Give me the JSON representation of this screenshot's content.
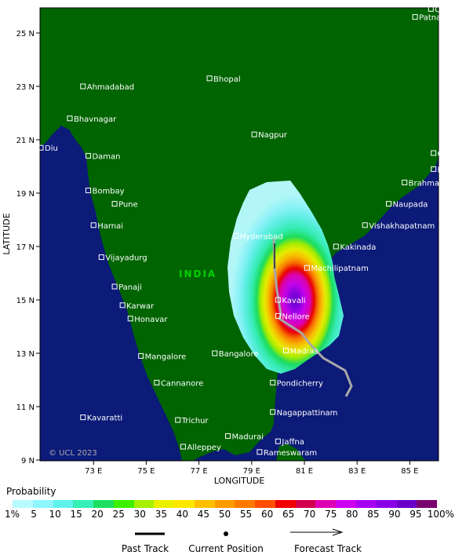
{
  "map": {
    "country_label": "INDIA",
    "copyright": "© UCL 2023",
    "colors": {
      "sea": "#0c1a78",
      "land": "#006400",
      "track": "#a8a8a8"
    },
    "latitude_ticks": [
      "25 N",
      "23 N",
      "21 N",
      "19 N",
      "17 N",
      "15 N",
      "13 N",
      "11 N",
      "9 N"
    ],
    "longitude_ticks": [
      "73 E",
      "75 E",
      "77 E",
      "79 E",
      "81 E",
      "83 E",
      "85 E"
    ],
    "latitude_title": "LATITUDE",
    "longitude_title": "LONGITUDE",
    "cities": [
      {
        "name": "Chapdpur",
        "lon": 85.8,
        "lat": 25.9
      },
      {
        "name": "Patna",
        "lon": 85.2,
        "lat": 25.6
      },
      {
        "name": "Ahmadabad",
        "lon": 72.6,
        "lat": 23.0
      },
      {
        "name": "Bhopal",
        "lon": 77.4,
        "lat": 23.3
      },
      {
        "name": "Bhavnagar",
        "lon": 72.1,
        "lat": 21.8
      },
      {
        "name": "Nagpur",
        "lon": 79.1,
        "lat": 21.2
      },
      {
        "name": "Diu",
        "lon": 71.0,
        "lat": 20.7
      },
      {
        "name": "Daman",
        "lon": 72.8,
        "lat": 20.4
      },
      {
        "name": "Cuttack",
        "lon": 85.9,
        "lat": 20.5
      },
      {
        "name": "Puri",
        "lon": 85.9,
        "lat": 19.9
      },
      {
        "name": "Bombay",
        "lon": 72.8,
        "lat": 19.1
      },
      {
        "name": "Brahmapur",
        "lon": 84.8,
        "lat": 19.4
      },
      {
        "name": "Pune",
        "lon": 73.8,
        "lat": 18.6
      },
      {
        "name": "Naupada",
        "lon": 84.2,
        "lat": 18.6
      },
      {
        "name": "Harnai",
        "lon": 73.0,
        "lat": 17.8
      },
      {
        "name": "Hyderabad",
        "lon": 78.4,
        "lat": 17.4
      },
      {
        "name": "Vishakhapatnam",
        "lon": 83.3,
        "lat": 17.8
      },
      {
        "name": "Vijayadurg",
        "lon": 73.3,
        "lat": 16.6
      },
      {
        "name": "Kakinada",
        "lon": 82.2,
        "lat": 17.0
      },
      {
        "name": "Machilipatnam",
        "lon": 81.1,
        "lat": 16.2
      },
      {
        "name": "Panaji",
        "lon": 73.8,
        "lat": 15.5
      },
      {
        "name": "Karwar",
        "lon": 74.1,
        "lat": 14.8
      },
      {
        "name": "Kavali",
        "lon": 80.0,
        "lat": 15.0
      },
      {
        "name": "Honavar",
        "lon": 74.4,
        "lat": 14.3
      },
      {
        "name": "Nellore",
        "lon": 80.0,
        "lat": 14.4
      },
      {
        "name": "Madras",
        "lon": 80.3,
        "lat": 13.1
      },
      {
        "name": "Mangalore",
        "lon": 74.8,
        "lat": 12.9
      },
      {
        "name": "Bangalore",
        "lon": 77.6,
        "lat": 13.0
      },
      {
        "name": "Cannanore",
        "lon": 75.4,
        "lat": 11.9
      },
      {
        "name": "Pondicherry",
        "lon": 79.8,
        "lat": 11.9
      },
      {
        "name": "Kavaratti",
        "lon": 72.6,
        "lat": 10.6
      },
      {
        "name": "Trichur",
        "lon": 76.2,
        "lat": 10.5
      },
      {
        "name": "Nagappattinam",
        "lon": 79.8,
        "lat": 10.8
      },
      {
        "name": "Madurai",
        "lon": 78.1,
        "lat": 9.9
      },
      {
        "name": "Alleppey",
        "lon": 76.4,
        "lat": 9.5
      },
      {
        "name": "Jaffna",
        "lon": 80.0,
        "lat": 9.7
      },
      {
        "name": "Rameswaram",
        "lon": 79.3,
        "lat": 9.3
      }
    ]
  },
  "legend": {
    "title": "Probability",
    "colors": [
      "#b7fbff",
      "#8ef6ff",
      "#5ff2e8",
      "#36f0b8",
      "#1de060",
      "#3cf000",
      "#a6f000",
      "#ecf000",
      "#ffe800",
      "#ffbf00",
      "#ff9a00",
      "#ff7800",
      "#ff4e00",
      "#f00000",
      "#d2004c",
      "#e000b4",
      "#cc00f0",
      "#a800f0",
      "#8a00e6",
      "#6a00c8",
      "#7a0070"
    ],
    "labels": [
      "1%",
      "5",
      "10",
      "15",
      "20",
      "25",
      "30",
      "35",
      "40",
      "45",
      "50",
      "55",
      "60",
      "65",
      "70",
      "75",
      "80",
      "85",
      "90",
      "95",
      "100%"
    ]
  },
  "track_legend": {
    "past": "Past Track",
    "current": "Current Position",
    "forecast": "Forecast Track"
  }
}
